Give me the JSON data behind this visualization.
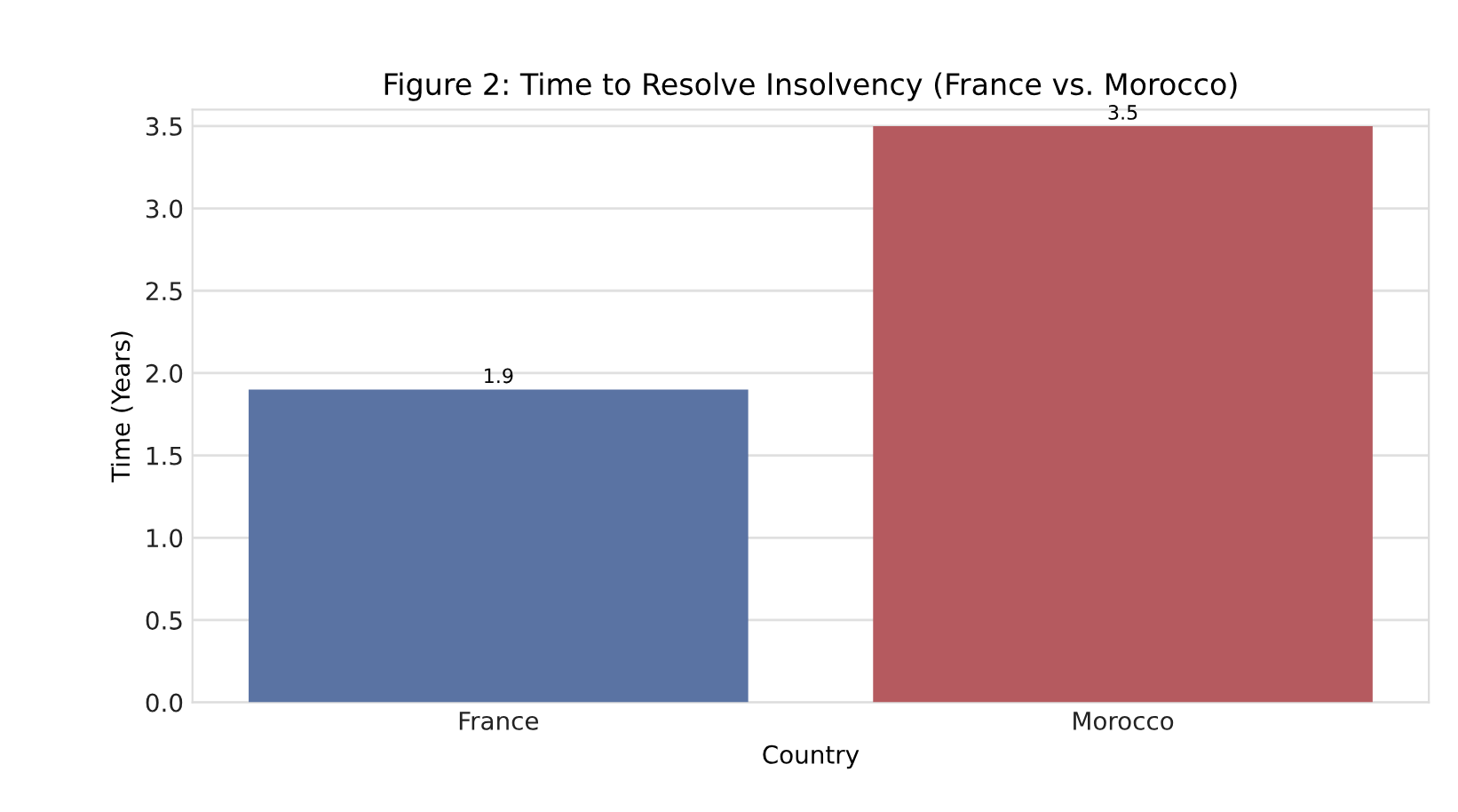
{
  "chart_data": {
    "type": "bar",
    "title": "Figure 2: Time to Resolve Insolvency (France vs. Morocco)",
    "xlabel": "Country",
    "ylabel": "Time (Years)",
    "categories": [
      "France",
      "Morocco"
    ],
    "values": [
      1.9,
      3.5
    ],
    "colors": [
      "#5a73a3",
      "#b55a5f"
    ],
    "ylim": [
      0,
      3.6
    ],
    "yticks": [
      {
        "value": 0,
        "label": "0.0"
      },
      0.5,
      {
        "value": 1,
        "label": "1.0"
      },
      1.5,
      {
        "value": 2,
        "label": "2.0"
      },
      2.5,
      {
        "value": 3,
        "label": "3.0"
      },
      3.5
    ],
    "grid": "y",
    "data_labels": true
  }
}
